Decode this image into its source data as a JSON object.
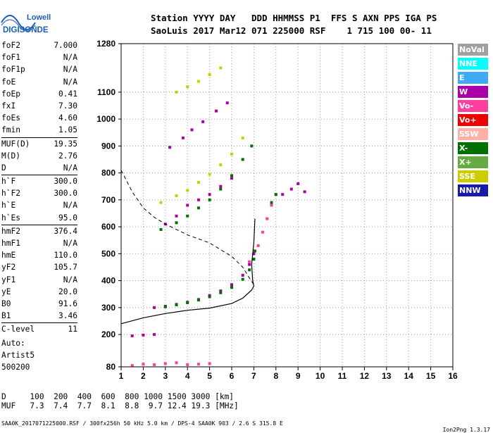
{
  "logo": {
    "line1": "Lowell",
    "line2": "DIGISONDE",
    "accent": "#1a5fb4"
  },
  "header": {
    "line1": "Station YYYY DAY   DDD HHMMSS P1  FFS S AXN PPS IGA PS",
    "line2": "SaoLuis 2017 Mar12 071 225000 RSF    1 715 100 00- 11"
  },
  "params": [
    [
      {
        "label": "foF2",
        "value": "7.000"
      },
      {
        "label": "foF1",
        "value": "N/A"
      },
      {
        "label": "foF1p",
        "value": "N/A"
      },
      {
        "label": "foE",
        "value": "N/A"
      },
      {
        "label": "foEp",
        "value": "0.41"
      },
      {
        "label": "fxI",
        "value": "7.30"
      },
      {
        "label": "foEs",
        "value": "4.60"
      },
      {
        "label": "fmin",
        "value": "1.05"
      }
    ],
    [
      {
        "label": "MUF(D)",
        "value": "19.35"
      },
      {
        "label": "M(D)",
        "value": "2.76"
      },
      {
        "label": "D",
        "value": "N/A"
      }
    ],
    [
      {
        "label": "h`F",
        "value": "300.0"
      },
      {
        "label": "h`F2",
        "value": "300.0"
      },
      {
        "label": "h`E",
        "value": "N/A"
      },
      {
        "label": "h`Es",
        "value": "95.0"
      }
    ],
    [
      {
        "label": "hmF2",
        "value": "376.4"
      },
      {
        "label": "hmF1",
        "value": "N/A"
      },
      {
        "label": "hmE",
        "value": "110.0"
      },
      {
        "label": "yF2",
        "value": "105.7"
      },
      {
        "label": "yF1",
        "value": "N/A"
      },
      {
        "label": "yE",
        "value": "20.0"
      },
      {
        "label": "B0",
        "value": "91.6"
      },
      {
        "label": "B1",
        "value": "3.46"
      }
    ],
    [
      {
        "label": "C-level",
        "value": "11"
      }
    ]
  ],
  "auto": {
    "line1": "Auto:",
    "line2": "Artist5",
    "line3": "500200"
  },
  "muf_table": {
    "d_row": "D     100  200  400  600  800 1000 1500 3000 [km]",
    "muf_row": "MUF   7.3  7.4  7.7  8.1  8.8  9.7 12.4 19.3 [MHz]"
  },
  "footer": {
    "left": "SAA0K_2017071225000.RSF / 300fx256h 50 kHz 5.0 km / DPS-4 SAA0K 903 / 2.6 S 315.8 E",
    "right": "Ion2Png 1.3.17"
  },
  "legend": [
    {
      "label": "NoVal",
      "bg": "#a0a0a0",
      "fg": "#ffffff"
    },
    {
      "label": "NNE",
      "bg": "#00ffff",
      "fg": "#ffffff"
    },
    {
      "label": "E",
      "bg": "#3fa9f5",
      "fg": "#ffffff"
    },
    {
      "label": "W",
      "bg": "#aa00aa",
      "fg": "#ffffff"
    },
    {
      "label": "Vo-",
      "bg": "#ff3fa0",
      "fg": "#ffffff"
    },
    {
      "label": "Vo+",
      "bg": "#ee0000",
      "fg": "#ffffff"
    },
    {
      "label": "SSW",
      "bg": "#ffb0a8",
      "fg": "#ffffff"
    },
    {
      "label": "X-",
      "bg": "#007000",
      "fg": "#ffffff"
    },
    {
      "label": "X+",
      "bg": "#66aa44",
      "fg": "#ffffff"
    },
    {
      "label": "SSE",
      "bg": "#cccc00",
      "fg": "#ffffff"
    },
    {
      "label": "NNW",
      "bg": "#1a1aa8",
      "fg": "#ffffff"
    }
  ],
  "chart_data": {
    "type": "scatter",
    "xlim": [
      1,
      16
    ],
    "ylim": [
      80,
      1280
    ],
    "x_ticks": [
      1,
      2,
      3,
      4,
      5,
      6,
      7,
      8,
      9,
      10,
      11,
      12,
      13,
      14,
      15,
      16
    ],
    "y_ticks": [
      80,
      200,
      300,
      400,
      500,
      600,
      700,
      800,
      900,
      1000,
      1100,
      1280
    ],
    "grid": true,
    "series": [
      {
        "color": "#aa00aa",
        "points": [
          [
            2.5,
            300
          ],
          [
            3,
            305
          ],
          [
            3.5,
            312
          ],
          [
            4,
            320
          ],
          [
            4.5,
            330
          ],
          [
            5,
            345
          ],
          [
            5.5,
            362
          ],
          [
            6,
            385
          ],
          [
            6.5,
            420
          ],
          [
            6.8,
            460
          ],
          [
            7,
            500
          ]
        ]
      },
      {
        "color": "#007000",
        "points": [
          [
            3,
            303
          ],
          [
            3.5,
            310
          ],
          [
            4,
            318
          ],
          [
            4.5,
            328
          ],
          [
            5,
            340
          ],
          [
            5.5,
            355
          ],
          [
            6,
            375
          ],
          [
            6.5,
            405
          ],
          [
            6.8,
            440
          ],
          [
            7,
            480
          ],
          [
            7.05,
            510
          ]
        ]
      },
      {
        "color": "#ff3fa0",
        "points": [
          [
            6.8,
            470
          ],
          [
            7.2,
            530
          ],
          [
            7.4,
            580
          ],
          [
            7.6,
            630
          ],
          [
            7.8,
            680
          ],
          [
            8,
            720
          ]
        ]
      },
      {
        "color": "#cccc00",
        "points": [
          [
            2.8,
            690
          ],
          [
            3.5,
            715
          ],
          [
            4,
            735
          ],
          [
            4.5,
            765
          ],
          [
            5,
            795
          ],
          [
            5.5,
            830
          ],
          [
            6,
            870
          ],
          [
            6.5,
            930
          ]
        ]
      },
      {
        "color": "#007000",
        "points": [
          [
            2.8,
            590
          ],
          [
            3.5,
            615
          ],
          [
            4,
            640
          ],
          [
            4.5,
            670
          ],
          [
            5,
            700
          ],
          [
            5.5,
            740
          ],
          [
            6,
            790
          ],
          [
            6.5,
            850
          ],
          [
            6.9,
            900
          ]
        ]
      },
      {
        "color": "#aa00aa",
        "points": [
          [
            3,
            610
          ],
          [
            3.5,
            640
          ],
          [
            4,
            680
          ],
          [
            4.5,
            700
          ],
          [
            5,
            720
          ],
          [
            5.5,
            750
          ],
          [
            6,
            780
          ]
        ]
      },
      {
        "color": "#aa00aa",
        "points": [
          [
            3.2,
            895
          ],
          [
            3.8,
            930
          ],
          [
            4.2,
            960
          ],
          [
            4.7,
            990
          ],
          [
            5.3,
            1030
          ],
          [
            5.8,
            1060
          ]
        ]
      },
      {
        "color": "#cccc00",
        "points": [
          [
            3.5,
            1100
          ],
          [
            4,
            1120
          ],
          [
            4.5,
            1140
          ],
          [
            5,
            1165
          ],
          [
            5.5,
            1190
          ]
        ]
      },
      {
        "color": "#aa00aa",
        "points": [
          [
            8.3,
            720
          ],
          [
            8.7,
            740
          ],
          [
            9,
            760
          ],
          [
            9.3,
            730
          ]
        ]
      },
      {
        "color": "#ff3fa0",
        "points": [
          [
            1.5,
            85
          ],
          [
            2,
            90
          ],
          [
            2.5,
            88
          ],
          [
            3,
            92
          ],
          [
            3.5,
            95
          ],
          [
            4,
            88
          ],
          [
            4.5,
            90
          ],
          [
            5,
            92
          ]
        ]
      },
      {
        "color": "#aa00aa",
        "points": [
          [
            1.5,
            195
          ],
          [
            2,
            198
          ],
          [
            2.5,
            200
          ]
        ]
      },
      {
        "color": "#007000",
        "points": [
          [
            7.8,
            690
          ],
          [
            8,
            720
          ]
        ]
      }
    ],
    "profile_line": [
      [
        1,
        240
      ],
      [
        2,
        262
      ],
      [
        3,
        278
      ],
      [
        4,
        290
      ],
      [
        5,
        298
      ],
      [
        6,
        315
      ],
      [
        6.5,
        335
      ],
      [
        6.9,
        365
      ],
      [
        7,
        380
      ],
      [
        6.95,
        400
      ],
      [
        6.9,
        460
      ],
      [
        7,
        540
      ],
      [
        7.05,
        630
      ]
    ],
    "dashed_line": [
      [
        1,
        810
      ],
      [
        1.5,
        730
      ],
      [
        2,
        670
      ],
      [
        2.5,
        635
      ],
      [
        3,
        610
      ],
      [
        3.5,
        590
      ],
      [
        4,
        570
      ],
      [
        5,
        540
      ],
      [
        6,
        490
      ],
      [
        6.5,
        450
      ],
      [
        6.8,
        410
      ],
      [
        7,
        385
      ]
    ]
  }
}
